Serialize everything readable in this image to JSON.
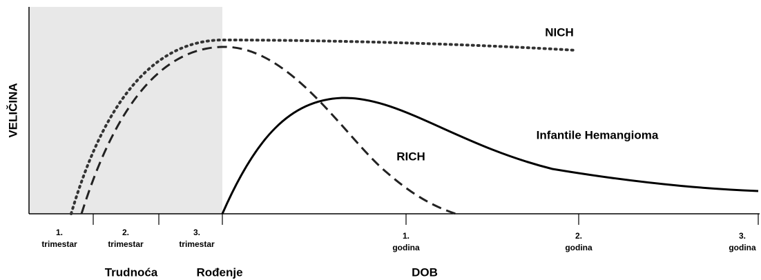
{
  "y_axis_label": "VELIČINA",
  "x_axis_label": "DOB",
  "ticks": [
    {
      "number": "1.",
      "unit": "trimestar"
    },
    {
      "number": "2.",
      "unit": "trimestar"
    },
    {
      "number": "3.",
      "unit": "trimestar"
    },
    {
      "number": "1.",
      "unit": "godina"
    },
    {
      "number": "2.",
      "unit": "godina"
    },
    {
      "number": "3.",
      "unit": "godina"
    }
  ],
  "periods": [
    "Trudnoća",
    "Rođenje"
  ],
  "curves": [
    {
      "label": "NICH"
    },
    {
      "label": "RICH"
    },
    {
      "label": "Infantile Hemangioma"
    }
  ]
}
